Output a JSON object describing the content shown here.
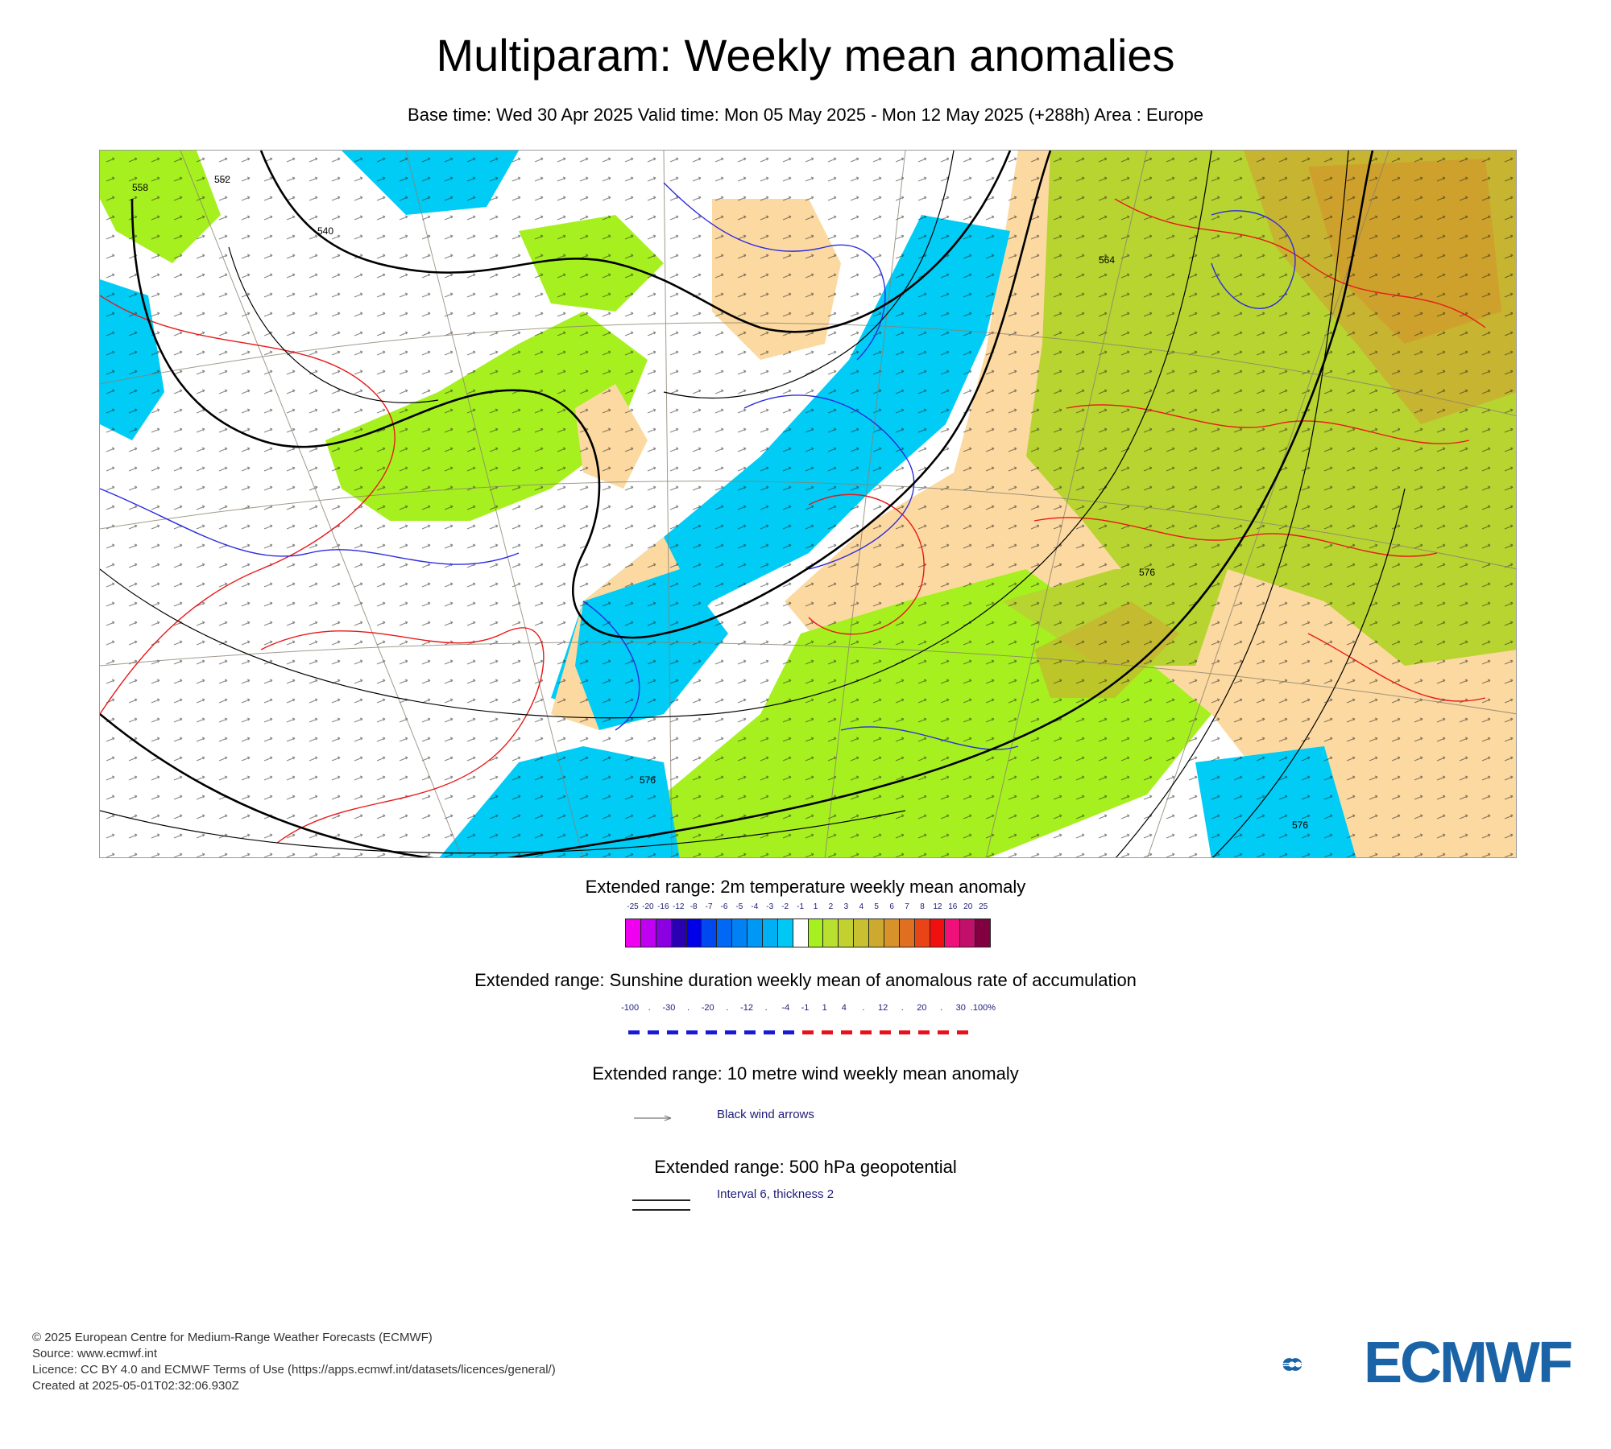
{
  "title": "Multiparam: Weekly mean anomalies",
  "subtitle": "Base time: Wed 30 Apr 2025 Valid time: Mon 05 May 2025 - Mon 12 May 2025 (+288h) Area : Europe",
  "map": {
    "region": "Europe",
    "contour_labels": [
      "576",
      "576",
      "564",
      "552",
      "540",
      "558",
      "576"
    ],
    "colors": {
      "ocean_cold": "#00ccf5",
      "mild_warm": "#a6f020",
      "warm": "#b8d430",
      "warmer": "#ccb030",
      "hot": "#d88a2a",
      "neutral_land": "#fcd9a0",
      "sunshine_positive": "#e8101a",
      "sunshine_negative": "#1818d8",
      "geopotential": "#000000"
    }
  },
  "legend": {
    "temperature": {
      "title": "Extended range: 2m temperature weekly mean anomaly",
      "labels": [
        "-25",
        "-20",
        "-16",
        "-12",
        "-8",
        "-7",
        "-6",
        "-5",
        "-4",
        "-3",
        "-2",
        "-1",
        "1",
        "2",
        "3",
        "4",
        "5",
        "6",
        "7",
        "8",
        "12",
        "16",
        "20",
        "25"
      ],
      "colors": [
        "#f000f0",
        "#c000f0",
        "#8a00e0",
        "#2a00b0",
        "#0000e8",
        "#0048f0",
        "#0068f5",
        "#0082f5",
        "#0098f5",
        "#00b0f5",
        "#00c8f5",
        "#ffffff",
        "#a6f020",
        "#b8e030",
        "#c2d030",
        "#c8c030",
        "#ccaa30",
        "#d8922a",
        "#e07020",
        "#e84418",
        "#f01010",
        "#f0107a",
        "#c0106a",
        "#800040"
      ]
    },
    "sunshine": {
      "title": "Extended range: Sunshine duration weekly mean of anomalous rate of accumulation",
      "labels": [
        "-100",
        ".",
        "-30",
        ".",
        "-20",
        ".",
        "-12",
        ".",
        "-4",
        "-1",
        "1",
        "4",
        ".",
        "12",
        ".",
        "20",
        ".",
        "30",
        ".100%"
      ]
    },
    "wind": {
      "title": "Extended range: 10 metre wind weekly mean anomaly",
      "note": "Black wind arrows"
    },
    "geopotential": {
      "title": "Extended range: 500 hPa geopotential",
      "note": "Interval 6, thickness 2"
    }
  },
  "footer": {
    "copyright": "© 2025 European Centre for Medium-Range Weather Forecasts (ECMWF)",
    "source": "Source: www.ecmwf.int",
    "licence": "Licence: CC BY 4.0 and ECMWF Terms of Use (https://apps.ecmwf.int/datasets/licences/general/)",
    "created": "Created at 2025-05-01T02:32:06.930Z"
  },
  "logo": {
    "text": "ECMWF",
    "color": "#1a63a6"
  }
}
